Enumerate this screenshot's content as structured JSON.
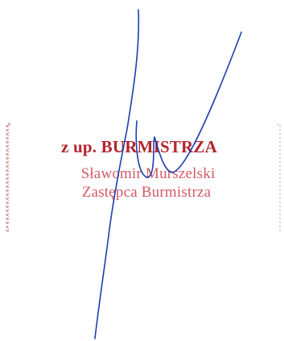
{
  "stamp": {
    "heading": "z up. BURMISTRZA",
    "name": "Sławomir Murszelski",
    "role": "Zastępca Burmistrza"
  },
  "colors": {
    "stamp_ink": "#c4343f",
    "signature_ink": "#1b3fae"
  }
}
